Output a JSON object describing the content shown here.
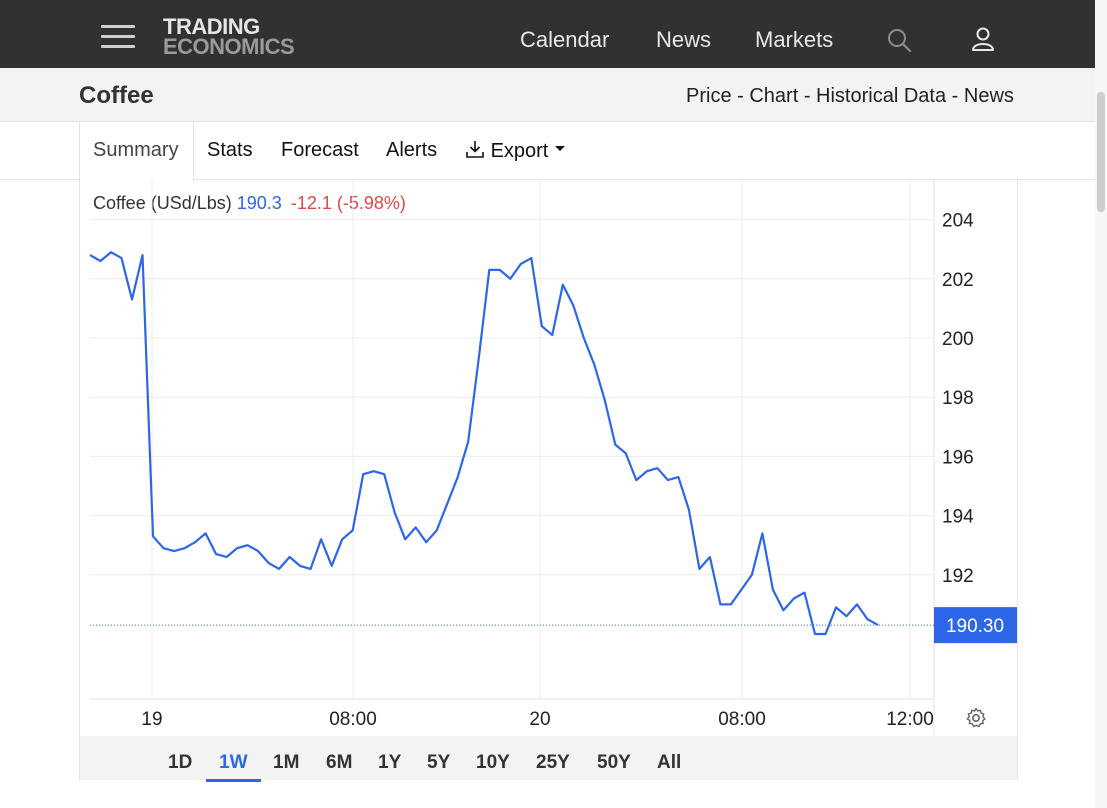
{
  "header": {
    "logo_line1": "TRADING",
    "logo_line2": "ECONOMICS",
    "nav": [
      "Calendar",
      "News",
      "Markets"
    ]
  },
  "subheader": {
    "title": "Coffee",
    "links": [
      "Price",
      "Chart",
      "Historical Data",
      "News"
    ],
    "separator": " - "
  },
  "tabs": {
    "summary": "Summary",
    "stats": "Stats",
    "forecast": "Forecast",
    "alerts": "Alerts",
    "export": "Export"
  },
  "legend": {
    "name": "Coffee (USd/Lbs)",
    "value": "190.3",
    "change": "-12.1 (-5.98%)"
  },
  "colors": {
    "line": "#2d66e8",
    "negative": "#e04848",
    "header_bg": "#313131"
  },
  "ranges": [
    "1D",
    "1W",
    "1M",
    "6M",
    "1Y",
    "5Y",
    "10Y",
    "25Y",
    "50Y",
    "All"
  ],
  "active_range": "1W",
  "chart_data": {
    "type": "line",
    "series": [
      {
        "values": [
          202.8,
          202.6,
          202.9,
          202.7,
          201.3,
          202.8,
          193.3,
          192.9,
          192.8,
          192.9,
          193.1,
          193.4,
          192.7,
          192.6,
          192.9,
          193.0,
          192.8,
          192.4,
          192.2,
          192.6,
          192.3,
          192.2,
          193.2,
          192.3,
          193.2,
          193.5,
          195.4,
          195.5,
          195.4,
          194.1,
          193.2,
          193.6,
          193.1,
          193.5,
          194.4,
          195.3,
          196.5,
          199.3,
          202.3,
          202.3,
          202.0,
          202.5,
          202.7,
          200.4,
          200.1,
          201.8,
          201.1,
          200.0,
          199.1,
          197.9,
          196.4,
          196.1,
          195.2,
          195.5,
          195.6,
          195.2,
          195.3,
          194.2,
          192.2,
          192.6,
          191.0,
          191.0,
          191.5,
          192.0,
          193.4,
          191.5,
          190.8,
          191.2,
          191.4,
          190.0,
          190.0,
          190.9,
          190.6,
          191.0,
          190.5,
          190.3
        ]
      }
    ],
    "x_tick_labels": [
      "19",
      "08:00",
      "20",
      "08:00",
      "12:00"
    ],
    "y_ticks": [
      192,
      194,
      196,
      198,
      200,
      202,
      204
    ],
    "ylim": [
      187.5,
      205
    ],
    "last_value_label": "190.30",
    "grid": true
  }
}
